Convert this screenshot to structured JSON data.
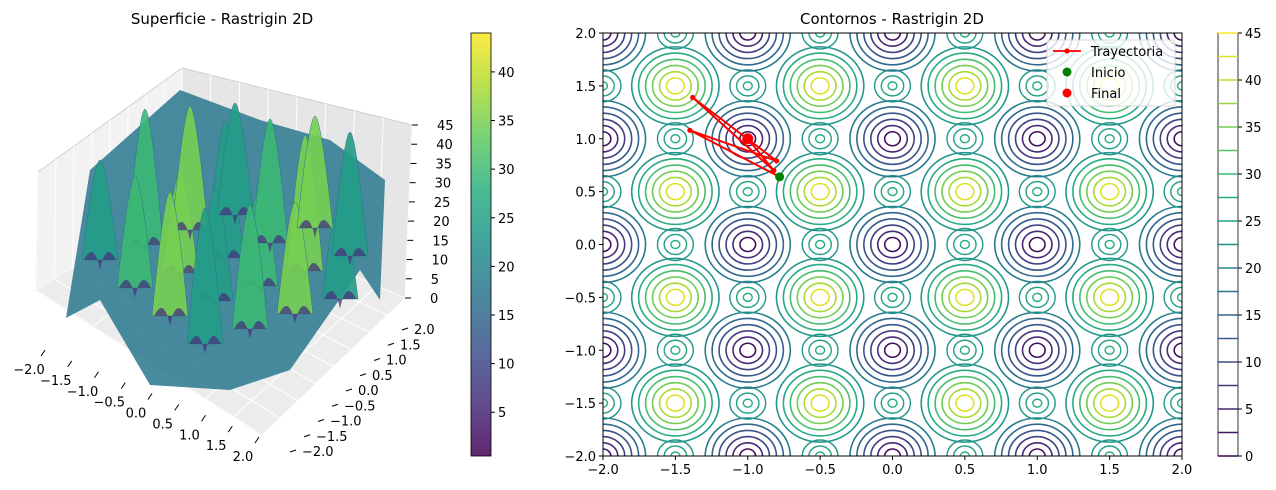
{
  "chart_data": [
    {
      "type": "surface3d",
      "title": "Superficie - Rastrigin 2D",
      "function": "Rastrigin 2D",
      "x_ticks": [
        "−2.0",
        "−1.5",
        "−1.0",
        "−0.5",
        "0.0",
        "0.5",
        "1.0",
        "1.5",
        "2.0"
      ],
      "y_ticks": [
        "−2.0",
        "−1.5",
        "−1.0",
        "−0.5",
        "0.0",
        "0.5",
        "1.0",
        "1.5",
        "2.0"
      ],
      "z_ticks": [
        "0",
        "5",
        "10",
        "15",
        "20",
        "25",
        "30",
        "35",
        "40",
        "45"
      ],
      "xlim": [
        -2,
        2
      ],
      "ylim": [
        -2,
        2
      ],
      "zlim": [
        0,
        45
      ],
      "colormap": "viridis",
      "colorbar": {
        "ticks": [
          "5",
          "10",
          "15",
          "20",
          "25",
          "30",
          "35",
          "40"
        ],
        "range": [
          0.5,
          44
        ]
      }
    },
    {
      "type": "contour",
      "title": "Contornos - Rastrigin 2D",
      "function": "Rastrigin 2D",
      "xlim": [
        -2,
        2
      ],
      "ylim": [
        -2,
        2
      ],
      "x_ticks": [
        "−2.0",
        "−1.5",
        "−1.0",
        "−0.5",
        "0.0",
        "0.5",
        "1.0",
        "1.5",
        "2.0"
      ],
      "y_ticks": [
        "−2.0",
        "−1.5",
        "−1.0",
        "−0.5",
        "0.0",
        "0.5",
        "1.0",
        "1.5",
        "2.0"
      ],
      "levels": [
        0,
        2.5,
        5,
        7.5,
        10,
        12.5,
        15,
        17.5,
        20,
        22.5,
        25,
        27.5,
        30,
        32.5,
        35,
        37.5,
        40,
        42.5,
        45
      ],
      "colorbar_ticks": [
        "0",
        "5",
        "10",
        "15",
        "20",
        "25",
        "30",
        "35",
        "40",
        "45"
      ],
      "colormap": "viridis",
      "series": [
        {
          "name": "Trayectoria",
          "color": "#ff0000",
          "x": [
            -0.78,
            -1.4,
            -0.8,
            -1.38,
            -0.82,
            -1.0
          ],
          "y": [
            0.64,
            1.08,
            0.79,
            1.39,
            0.7,
            1.0
          ]
        },
        {
          "name": "Inicio",
          "color": "#008000",
          "x": [
            -0.78
          ],
          "y": [
            0.64
          ]
        },
        {
          "name": "Final",
          "color": "#ff0000",
          "x": [
            -1.0
          ],
          "y": [
            1.0
          ]
        }
      ],
      "legend_position": "top-right"
    }
  ]
}
